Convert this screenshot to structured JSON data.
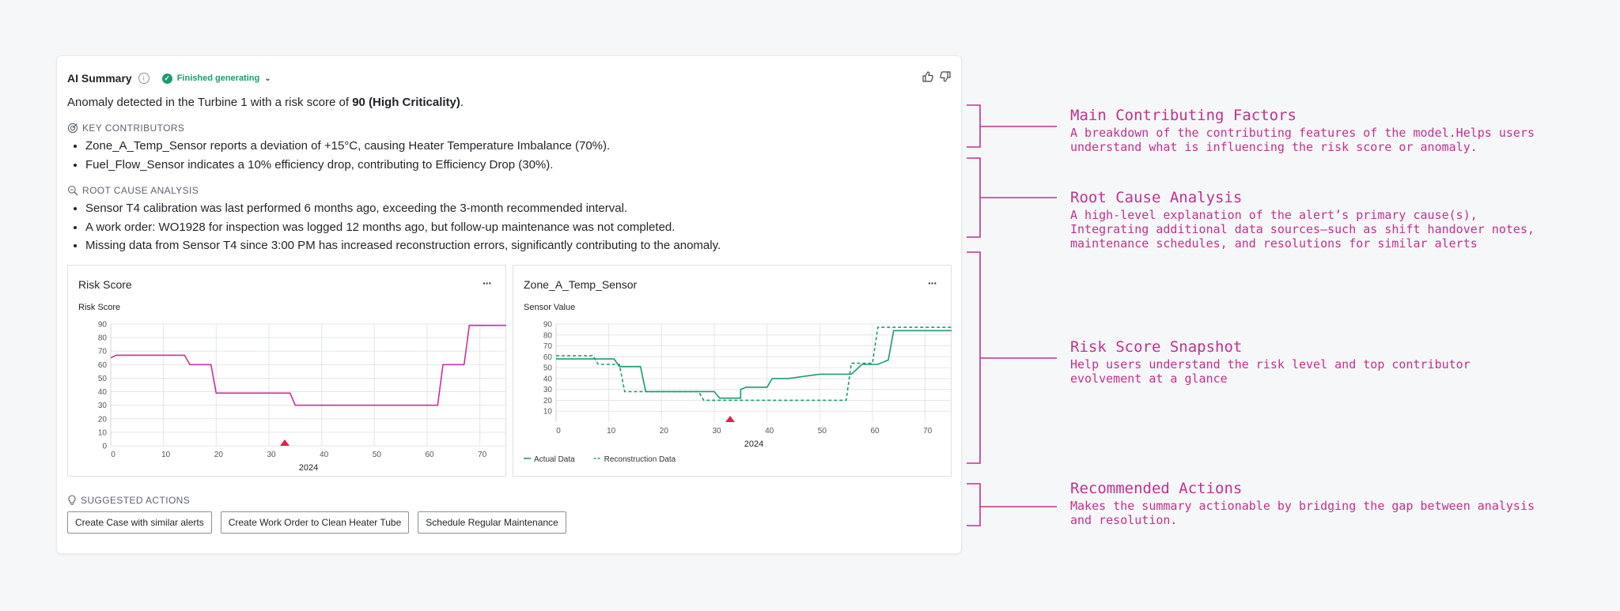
{
  "panel": {
    "title": "AI Summary",
    "info_icon": "info-icon",
    "status": "Finished generating",
    "thumbs_up_icon": "thumbs-up-icon",
    "thumbs_down_icon": "thumbs-down-icon",
    "summary_prefix": "Anomaly detected in the Turbine 1 with a risk score of ",
    "summary_bold": "90 (High Criticality)",
    "summary_suffix": "."
  },
  "key_contributors": {
    "label": "KEY CONTRIBUTORS",
    "items": [
      "Zone_A_Temp_Sensor reports a deviation of +15°C, causing Heater Temperature Imbalance (70%).",
      "Fuel_Flow_Sensor indicates a 10% efficiency drop, contributing to Efficiency Drop (30%)."
    ]
  },
  "root_cause": {
    "label": "ROOT CAUSE ANALYSIS",
    "items": [
      "Sensor T4 calibration was last performed 6 months ago, exceeding the 3-month recommended interval.",
      "A work order: WO1928 for inspection was logged 12 months ago, but follow-up maintenance was not completed.",
      "Missing data from Sensor T4 since 3:00 PM has increased reconstruction errors, significantly contributing to the anomaly."
    ]
  },
  "suggested_actions": {
    "label": "SUGGESTED ACTIONS",
    "buttons": [
      "Create Case with similar alerts",
      "Create Work Order to Clean Heater Tube",
      "Schedule Regular Maintenance"
    ]
  },
  "chart_data": [
    {
      "type": "line",
      "title": "Risk Score",
      "ylabel": "Risk Score",
      "xlabel": "2024",
      "xlim": [
        0,
        75
      ],
      "ylim": [
        0,
        90
      ],
      "xticks": [
        0,
        10,
        20,
        30,
        40,
        50,
        60,
        70
      ],
      "yticks": [
        0,
        10,
        20,
        30,
        40,
        50,
        60,
        70,
        80,
        90
      ],
      "grid": true,
      "marker": {
        "x": 33,
        "color": "#d6254b"
      },
      "series": [
        {
          "color": "#c8319a",
          "style": "solid",
          "points": [
            [
              0,
              65
            ],
            [
              1,
              67
            ],
            [
              14,
              67
            ],
            [
              15,
              60
            ],
            [
              19,
              60
            ],
            [
              20,
              39
            ],
            [
              34,
              39
            ],
            [
              35,
              30
            ],
            [
              62,
              30
            ],
            [
              63,
              60
            ],
            [
              67,
              60
            ],
            [
              68,
              89
            ],
            [
              75,
              89
            ]
          ]
        }
      ]
    },
    {
      "type": "line",
      "title": "Zone_A_Temp_Sensor",
      "ylabel": "Sensor Value",
      "xlabel": "2024",
      "xlim": [
        0,
        75
      ],
      "ylim": [
        0,
        90
      ],
      "xticks": [
        0,
        10,
        20,
        30,
        40,
        50,
        60,
        70
      ],
      "yticks": [
        10,
        20,
        30,
        40,
        50,
        60,
        70,
        80,
        90
      ],
      "grid": true,
      "marker": {
        "x": 33,
        "color": "#d6254b"
      },
      "legend": "bottom-left",
      "series": [
        {
          "name": "Actual Data",
          "color": "#1b9a74",
          "style": "solid",
          "points": [
            [
              0,
              58
            ],
            [
              11,
              58
            ],
            [
              12,
              51
            ],
            [
              16,
              51
            ],
            [
              17,
              28
            ],
            [
              30,
              28
            ],
            [
              31,
              22
            ],
            [
              35,
              22
            ],
            [
              35,
              30
            ],
            [
              36,
              32
            ],
            [
              40,
              32
            ],
            [
              41,
              40
            ],
            [
              44,
              40
            ],
            [
              50,
              44
            ],
            [
              56,
              44
            ],
            [
              58,
              53
            ],
            [
              61,
              53
            ],
            [
              62,
              55
            ],
            [
              63,
              57
            ],
            [
              64,
              84
            ],
            [
              75,
              84
            ]
          ]
        },
        {
          "name": "Reconstruction Data",
          "color": "#1b9a74",
          "style": "dashed",
          "points": [
            [
              0,
              61
            ],
            [
              7,
              61
            ],
            [
              8,
              53
            ],
            [
              12,
              53
            ],
            [
              13,
              28
            ],
            [
              27,
              28
            ],
            [
              28,
              20
            ],
            [
              55,
              20
            ],
            [
              56,
              54
            ],
            [
              60,
              54
            ],
            [
              61,
              87
            ],
            [
              75,
              87
            ]
          ]
        }
      ]
    }
  ],
  "annotations": [
    {
      "title": "Main Contributing Factors",
      "desc": "A breakdown of the contributing features of the model.Helps users understand what is influencing the risk score or anomaly."
    },
    {
      "title": "Root Cause Analysis",
      "desc": "A high-level explanation of the alert’s primary cause(s), Integrating additional data sources—such as shift handover notes, maintenance schedules, and resolutions for similar alerts"
    },
    {
      "title": "Risk Score Snapshot",
      "desc": "Help users understand the risk level and top contributor evolvement at a glance"
    },
    {
      "title": "Recommended Actions",
      "desc": "Makes the summary actionable by bridging the gap between analysis and resolution."
    }
  ],
  "colors": {
    "accent": "#c2308f",
    "success": "#1b9a74",
    "risk_line": "#c8319a",
    "marker": "#d6254b"
  }
}
